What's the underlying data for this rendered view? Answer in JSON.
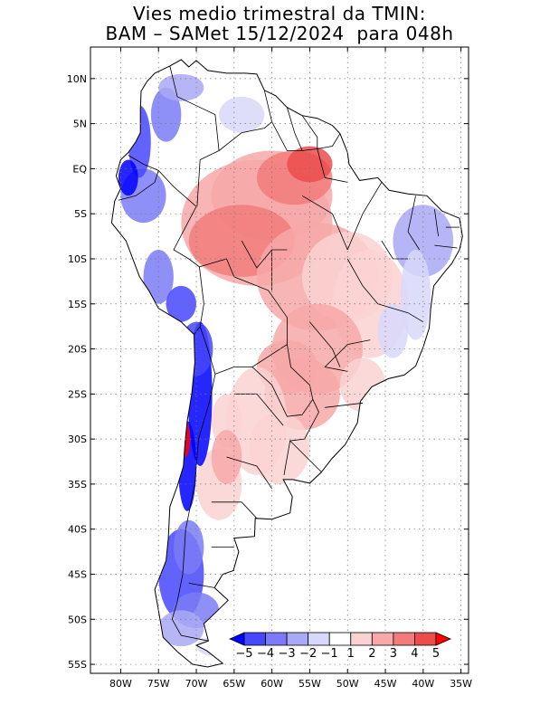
{
  "title": {
    "line1": "Vies medio trimestral da TMIN:",
    "line2": "BAM – SAMet 15/12/2024  para 048h"
  },
  "axes": {
    "lat_labels": [
      "10N",
      "5N",
      "EQ",
      "5S",
      "10S",
      "15S",
      "20S",
      "25S",
      "30S",
      "35S",
      "40S",
      "45S",
      "50S",
      "55S"
    ],
    "lat_values": [
      10,
      5,
      0,
      -5,
      -10,
      -15,
      -20,
      -25,
      -30,
      -35,
      -40,
      -45,
      -50,
      -55
    ],
    "lon_labels": [
      "80W",
      "75W",
      "70W",
      "65W",
      "60W",
      "55W",
      "50W",
      "45W",
      "40W",
      "35W"
    ],
    "lon_values": [
      -80,
      -75,
      -70,
      -65,
      -60,
      -55,
      -50,
      -45,
      -40,
      -35
    ],
    "lat_range": [
      -56,
      13.5
    ],
    "lon_range": [
      -84,
      -34
    ],
    "grid": "dotted"
  },
  "colorbar": {
    "labels": [
      "−5",
      "−4",
      "−3",
      "−2",
      "−1",
      "1",
      "2",
      "3",
      "4",
      "5"
    ],
    "colors": [
      "#0000ff",
      "#4747ff",
      "#7b7bf7",
      "#a9a9f5",
      "#d8d8fa",
      "#ffffff",
      "#fbd2d2",
      "#f7a8a8",
      "#f27c7c",
      "#ec4c4c",
      "#ff0000"
    ],
    "orientation": "horizontal",
    "position": "bottom-right inside map"
  },
  "map": {
    "region": "South America",
    "variable": "TMIN bias",
    "land_color": "#ffffff",
    "border_color": "#000000"
  }
}
